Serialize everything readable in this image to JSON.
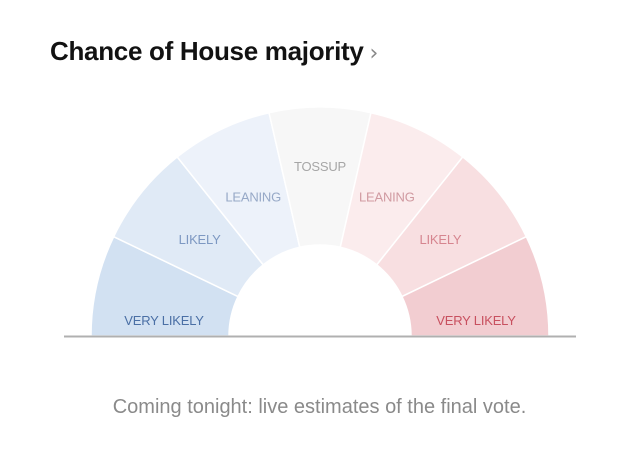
{
  "header": {
    "title": "Chance of House majority",
    "chevron": "›"
  },
  "chart_data": {
    "type": "gauge",
    "segments": [
      {
        "label": "VERY LIKELY",
        "color": "#d2e1f2",
        "text_color": "#4a6fa5"
      },
      {
        "label": "LIKELY",
        "color": "#e0eaf6",
        "text_color": "#7d98c2"
      },
      {
        "label": "LEANING",
        "color": "#edf2fa",
        "text_color": "#97a9c7"
      },
      {
        "label": "TOSSUP",
        "color": "#f7f7f7",
        "text_color": "#a6a6a6"
      },
      {
        "label": "LEANING",
        "color": "#fbeced",
        "text_color": "#d09aa1"
      },
      {
        "label": "LIKELY",
        "color": "#f8dfe1",
        "text_color": "#d6858f"
      },
      {
        "label": "VERY LIKELY",
        "color": "#f2cdd1",
        "text_color": "#c8505f"
      }
    ],
    "divider_color": "#ffffff",
    "baseline_color": "#b0b0b0"
  },
  "caption": "Coming tonight: live estimates of the final vote."
}
